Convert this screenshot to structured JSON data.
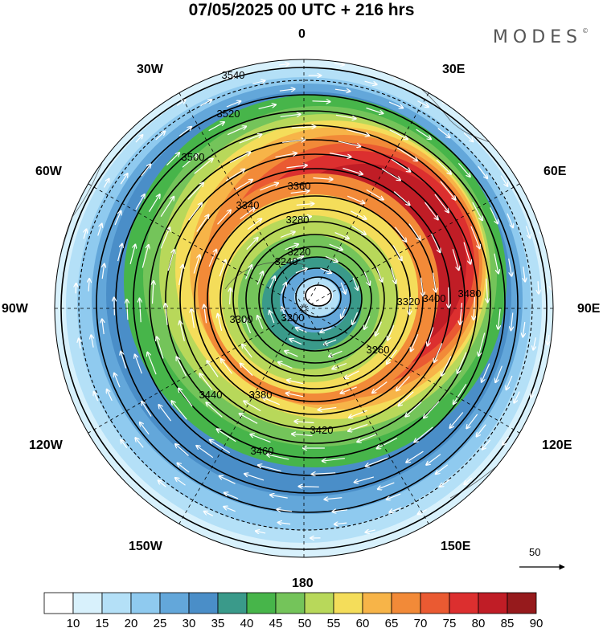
{
  "title": "07/05/2025  00 UTC  + 216 hrs",
  "brand": "MODES",
  "brand_mark": "©",
  "longitude_labels": {
    "lon_0": "0",
    "lon_30e": "30E",
    "lon_60e": "60E",
    "lon_90e": "90E",
    "lon_120e": "120E",
    "lon_150e": "150E",
    "lon_180": "180",
    "lon_150w": "150W",
    "lon_120w": "120W",
    "lon_90w": "90W",
    "lon_60w": "60W",
    "lon_30w": "30W"
  },
  "contour_labels": [
    "3540",
    "3520",
    "3500",
    "3480",
    "3460",
    "3440",
    "3420",
    "3400",
    "3380",
    "3360",
    "3340",
    "3320",
    "3300",
    "3280",
    "3260",
    "3240",
    "3220",
    "3200"
  ],
  "vector_reference": "50",
  "colorbar": {
    "colors": [
      "#ffffff",
      "#d8f1fc",
      "#b4e0f7",
      "#8fcaef",
      "#63a7da",
      "#4a8ec8",
      "#3a9a8a",
      "#47b54a",
      "#74c45a",
      "#b8d85a",
      "#f4dd5a",
      "#f7b448",
      "#f28a38",
      "#ea5a32",
      "#dc2f2f",
      "#c01d26",
      "#961a1c"
    ],
    "ticks": [
      "10",
      "15",
      "20",
      "25",
      "30",
      "35",
      "40",
      "45",
      "50",
      "55",
      "60",
      "65",
      "70",
      "75",
      "80",
      "85",
      "90"
    ]
  }
}
